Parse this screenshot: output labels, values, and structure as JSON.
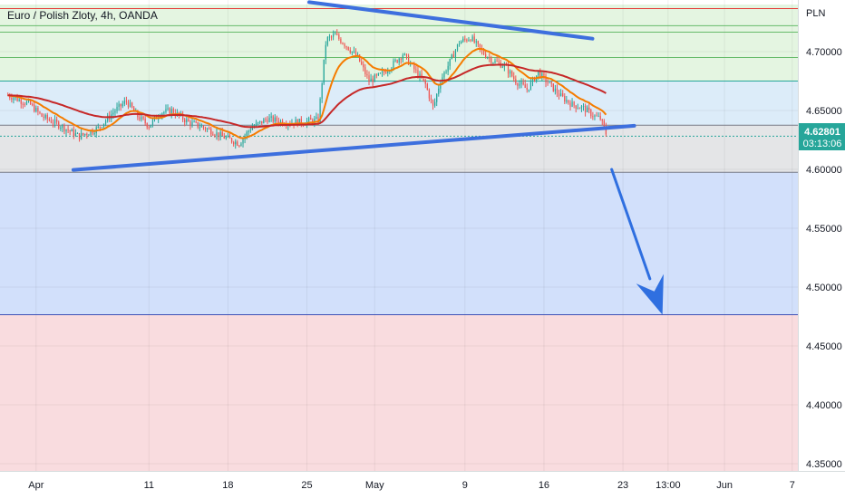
{
  "header": {
    "symbol_title": "Euro / Polish Zloty, 4h, OANDA"
  },
  "price_axis": {
    "currency": "PLN",
    "last_price": "4.62801",
    "countdown": "03:13:06",
    "badge_color": "#26a69a"
  },
  "chart_data": {
    "type": "candlestick",
    "instrument": "Euro / Polish Zloty",
    "timeframe": "4h",
    "source": "OANDA",
    "ylim": [
      4.31,
      4.71
    ],
    "y_ticks": [
      "4.70000",
      "4.65000",
      "4.60000",
      "4.55000",
      "4.50000",
      "4.45000",
      "4.40000",
      "4.35000"
    ],
    "y_tick_values": [
      4.7,
      4.65,
      4.6,
      4.55,
      4.5,
      4.45,
      4.4,
      4.35
    ],
    "x_ticks": [
      {
        "label": "Apr",
        "day": 1
      },
      {
        "label": "11",
        "day": 11
      },
      {
        "label": "18",
        "day": 18
      },
      {
        "label": "25",
        "day": 25
      },
      {
        "label": "May",
        "day": 31
      },
      {
        "label": "9",
        "day": 39
      },
      {
        "label": "16",
        "day": 46
      },
      {
        "label": "23",
        "day": 53
      },
      {
        "label": "13:00",
        "day": 57
      },
      {
        "label": "Jun",
        "day": 62
      },
      {
        "label": "7",
        "day": 68
      }
    ],
    "x_domain_days": [
      -2.2,
      68.5
    ],
    "zones": [
      {
        "name": "green-zone-top",
        "from": 4.74,
        "to": 4.675,
        "color": "#e4f5e1"
      },
      {
        "name": "light-blue-zone",
        "from": 4.675,
        "to": 4.6375,
        "color": "#dcecf9"
      },
      {
        "name": "gray-zone",
        "from": 4.6375,
        "to": 4.5975,
        "color": "#e4e5e7"
      },
      {
        "name": "blue-zone",
        "from": 4.5975,
        "to": 4.4765,
        "color": "#d2e0fb"
      },
      {
        "name": "red-zone",
        "from": 4.4765,
        "to": 4.3,
        "color": "#f9dcdf"
      }
    ],
    "horizontal_levels": [
      {
        "price": 4.7365,
        "color": "#e53935"
      },
      {
        "price": 4.722,
        "color": "#66bb6a"
      },
      {
        "price": 4.7165,
        "color": "#66bb6a"
      },
      {
        "price": 4.695,
        "color": "#66bb6a"
      },
      {
        "price": 4.675,
        "color": "#26a69a"
      },
      {
        "price": 4.6375,
        "color": "#787b86"
      },
      {
        "price": 4.5975,
        "color": "#787b86"
      },
      {
        "price": 4.4765,
        "color": "#3f51b5"
      },
      {
        "price": 4.6282,
        "color": "#26a69a",
        "dashed": true
      }
    ],
    "trend_lines": [
      {
        "name": "upper-trendline",
        "day1": 25.2,
        "price1": 4.742,
        "day2": 50.3,
        "price2": 4.711,
        "color": "#3d6fde"
      },
      {
        "name": "lower-trendline",
        "day1": 4.3,
        "price1": 4.5995,
        "day2": 54.0,
        "price2": 4.637,
        "color": "#3d6fde"
      }
    ],
    "projection_arrow": {
      "from_day": 52.0,
      "from_price": 4.6,
      "to_day": 56.5,
      "to_price": 4.4765,
      "color": "#2f6fe0"
    },
    "price_path": [
      [
        -1.5,
        4.663
      ],
      [
        0.5,
        4.655
      ],
      [
        1.5,
        4.645
      ],
      [
        3.0,
        4.638
      ],
      [
        4.8,
        4.628
      ],
      [
        6.5,
        4.635
      ],
      [
        8.0,
        4.65
      ],
      [
        9.0,
        4.658
      ],
      [
        10.0,
        4.645
      ],
      [
        11.0,
        4.637
      ],
      [
        12.0,
        4.648
      ],
      [
        13.0,
        4.65
      ],
      [
        14.5,
        4.64
      ],
      [
        16.0,
        4.635
      ],
      [
        17.5,
        4.628
      ],
      [
        19.0,
        4.622
      ],
      [
        20.0,
        4.635
      ],
      [
        21.5,
        4.643
      ],
      [
        23.0,
        4.64
      ],
      [
        24.5,
        4.64
      ],
      [
        26.0,
        4.642
      ],
      [
        26.7,
        4.71
      ],
      [
        27.5,
        4.714
      ],
      [
        28.5,
        4.705
      ],
      [
        29.5,
        4.695
      ],
      [
        30.5,
        4.675
      ],
      [
        31.5,
        4.68
      ],
      [
        32.5,
        4.688
      ],
      [
        33.5,
        4.698
      ],
      [
        34.5,
        4.685
      ],
      [
        35.5,
        4.672
      ],
      [
        36.2,
        4.652
      ],
      [
        36.8,
        4.675
      ],
      [
        37.5,
        4.688
      ],
      [
        38.5,
        4.708
      ],
      [
        39.5,
        4.712
      ],
      [
        40.5,
        4.7
      ],
      [
        41.5,
        4.692
      ],
      [
        42.5,
        4.688
      ],
      [
        43.5,
        4.675
      ],
      [
        44.5,
        4.668
      ],
      [
        45.5,
        4.682
      ],
      [
        46.5,
        4.672
      ],
      [
        47.5,
        4.662
      ],
      [
        48.5,
        4.655
      ],
      [
        49.5,
        4.652
      ],
      [
        50.5,
        4.645
      ],
      [
        51.0,
        4.643
      ],
      [
        51.6,
        4.628
      ]
    ],
    "moving_averages": [
      {
        "name": "ema-fast",
        "color": "#f57c00",
        "period": 3
      },
      {
        "name": "ema-slow",
        "color": "#c62828",
        "period": 12
      }
    ]
  }
}
